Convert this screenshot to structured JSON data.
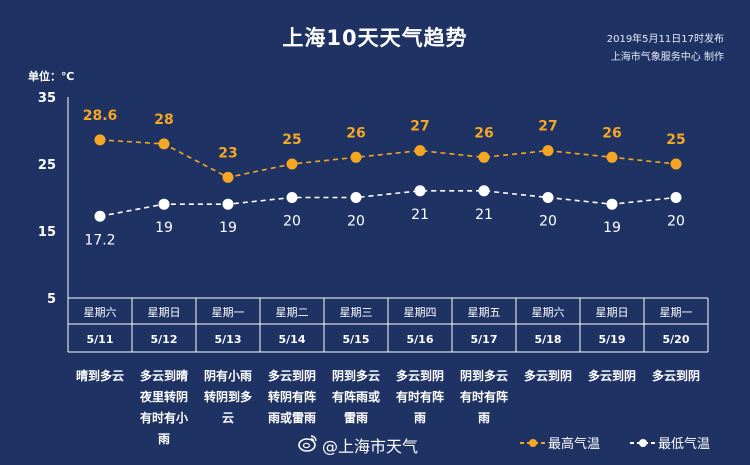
{
  "title": "上海10天天气趋势",
  "credit_line1": "2019年5月11日17时发布",
  "credit_line2": "上海市气象服务中心  制作",
  "unit_label": "单位：℃",
  "colors": {
    "background": "#1e3263",
    "high": "#f5a623",
    "low": "#ffffff"
  },
  "chart_data": {
    "type": "line",
    "ylim": [
      5,
      35
    ],
    "yticks": [
      35,
      25,
      15,
      5
    ],
    "categories": [
      {
        "weekday": "星期六",
        "date": "5/11"
      },
      {
        "weekday": "星期日",
        "date": "5/12"
      },
      {
        "weekday": "星期一",
        "date": "5/13"
      },
      {
        "weekday": "星期二",
        "date": "5/14"
      },
      {
        "weekday": "星期三",
        "date": "5/15"
      },
      {
        "weekday": "星期四",
        "date": "5/16"
      },
      {
        "weekday": "星期五",
        "date": "5/17"
      },
      {
        "weekday": "星期六",
        "date": "5/18"
      },
      {
        "weekday": "星期日",
        "date": "5/19"
      },
      {
        "weekday": "星期一",
        "date": "5/20"
      }
    ],
    "series": [
      {
        "name": "最高气温",
        "values": [
          28.6,
          28,
          23,
          25,
          26,
          27,
          26,
          27,
          26,
          25
        ],
        "labels": [
          "28.6",
          "28",
          "23",
          "25",
          "26",
          "27",
          "26",
          "27",
          "26",
          "25"
        ]
      },
      {
        "name": "最低气温",
        "values": [
          17.2,
          19,
          19,
          20,
          20,
          21,
          21,
          20,
          19,
          20
        ],
        "labels": [
          "17.2",
          "19",
          "19",
          "20",
          "20",
          "21",
          "21",
          "20",
          "19",
          "20"
        ]
      }
    ]
  },
  "weather": [
    [
      "晴到多云"
    ],
    [
      "多云到晴",
      "夜里转阴",
      "有时有小",
      "雨"
    ],
    [
      "阴有小雨",
      "转阴到多",
      "云"
    ],
    [
      "多云到阴",
      "转阴有阵",
      "雨或雷雨"
    ],
    [
      "阴到多云",
      "有阵雨或",
      "雷雨"
    ],
    [
      "多云到阴",
      "有时有阵",
      "雨"
    ],
    [
      "阴到多云",
      "有时有阵",
      "雨"
    ],
    [
      "多云到阴"
    ],
    [
      "多云到阴"
    ],
    [
      "多云到阴"
    ]
  ],
  "watermark": "@上海市天气",
  "legend": {
    "high": "最高气温",
    "low": "最低气温"
  }
}
